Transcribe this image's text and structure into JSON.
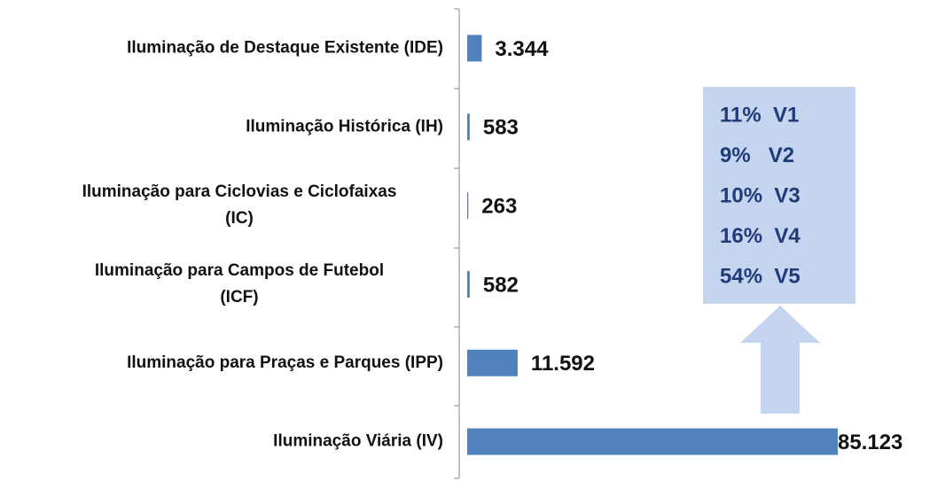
{
  "chart_data": {
    "type": "barh",
    "categories": [
      [
        "Iluminação de Destaque Existente (IDE)"
      ],
      [
        "Iluminação Histórica (IH)"
      ],
      [
        "Iluminação para Ciclovias e Ciclofaixas",
        "(IC)"
      ],
      [
        "Iluminação para Campos de Futebol",
        "(ICF)"
      ],
      [
        "Iluminação para Praças e Parques (IPP)"
      ],
      [
        "Iluminação Viária (IV)"
      ]
    ],
    "values": [
      3344,
      583,
      263,
      582,
      11592,
      85123
    ],
    "value_labels": [
      "3.344",
      "583",
      "263",
      "582",
      "11.592",
      "85.123"
    ],
    "color": "#4f81bd",
    "annotations": [
      "11%  V1",
      "9%   V2",
      "10%  V3",
      "16%  V4",
      "54%  V5"
    ]
  }
}
